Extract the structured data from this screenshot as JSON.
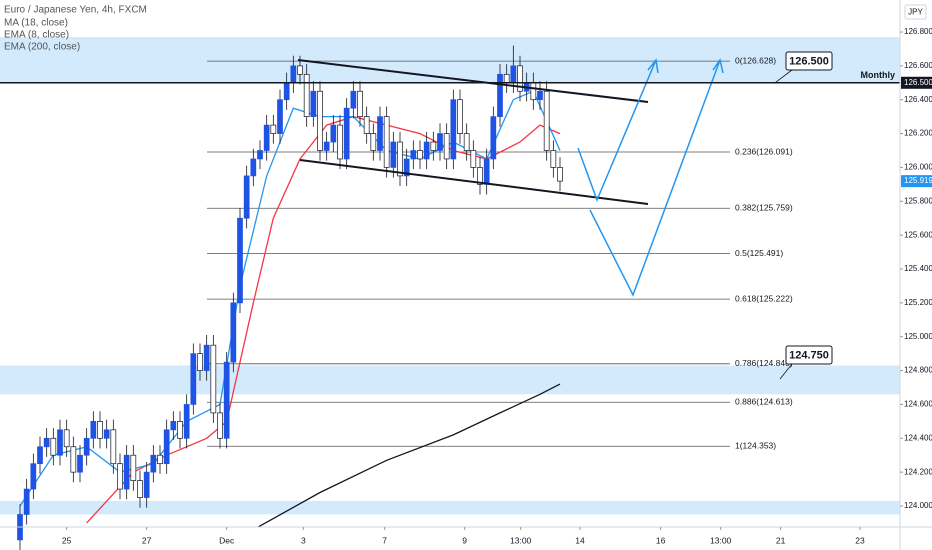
{
  "chart_data": {
    "type": "candlestick",
    "title": "Euro / Japanese Yen, 4h, FXCM",
    "currency": "JPY",
    "x": [
      0,
      1,
      2,
      3,
      4,
      5,
      6,
      7,
      8,
      9,
      10,
      11,
      12,
      13,
      14,
      15,
      16,
      17,
      18,
      19,
      20,
      21,
      22,
      23,
      24,
      25,
      26,
      27,
      28,
      29,
      30,
      31,
      32,
      33,
      34,
      35,
      36,
      37,
      38,
      39,
      40,
      41,
      42,
      43,
      44,
      45,
      46,
      47,
      48,
      49,
      50,
      51,
      52,
      53,
      54,
      55,
      56,
      57,
      58,
      59,
      60,
      61,
      62,
      63,
      64,
      65,
      66,
      67,
      68,
      69,
      70,
      71,
      72,
      73,
      74,
      75,
      76,
      77,
      78,
      79,
      80,
      81
    ],
    "open": [
      123.8,
      123.95,
      124.1,
      124.25,
      124.35,
      124.4,
      124.3,
      124.45,
      124.35,
      124.2,
      124.3,
      124.4,
      124.5,
      124.4,
      124.45,
      124.25,
      124.1,
      124.3,
      124.15,
      124.05,
      124.2,
      124.3,
      124.25,
      124.45,
      124.5,
      124.4,
      124.6,
      124.9,
      124.8,
      124.95,
      124.55,
      124.4,
      124.85,
      125.2,
      125.7,
      125.95,
      126.05,
      126.1,
      126.25,
      126.2,
      126.4,
      126.5,
      126.6,
      126.55,
      126.3,
      126.45,
      126.1,
      126.15,
      126.25,
      126.05,
      126.35,
      126.45,
      126.3,
      126.2,
      126.1,
      126.3,
      126.0,
      126.15,
      125.95,
      126.05,
      126.1,
      126.05,
      126.15,
      126.1,
      126.2,
      126.05,
      126.4,
      126.2,
      126.1,
      126.0,
      125.9,
      126.05,
      126.3,
      126.55,
      126.5,
      126.6,
      126.45,
      126.5,
      126.4,
      126.45,
      126.1,
      126.0
    ],
    "high": [
      124.01,
      124.16,
      124.31,
      124.41,
      124.46,
      124.46,
      124.51,
      124.51,
      124.41,
      124.36,
      124.46,
      124.56,
      124.56,
      124.51,
      124.51,
      124.31,
      124.36,
      124.36,
      124.21,
      124.26,
      124.36,
      124.36,
      124.51,
      124.56,
      124.56,
      124.66,
      124.96,
      124.96,
      125.01,
      125.01,
      124.61,
      124.91,
      125.26,
      125.76,
      126.01,
      126.11,
      126.16,
      126.31,
      126.31,
      126.46,
      126.56,
      126.66,
      126.66,
      126.61,
      126.51,
      126.51,
      126.21,
      126.31,
      126.31,
      126.41,
      126.51,
      126.51,
      126.36,
      126.26,
      126.36,
      126.36,
      126.21,
      126.21,
      126.11,
      126.16,
      126.16,
      126.21,
      126.21,
      126.26,
      126.26,
      126.46,
      126.46,
      126.26,
      126.16,
      126.06,
      126.11,
      126.36,
      126.61,
      126.61,
      126.72,
      126.66,
      126.56,
      126.56,
      126.51,
      126.51,
      126.16,
      126.06
    ],
    "low": [
      123.74,
      123.89,
      124.04,
      124.19,
      124.29,
      124.24,
      124.24,
      124.29,
      124.14,
      124.14,
      124.24,
      124.34,
      124.34,
      124.34,
      124.19,
      124.04,
      124.04,
      124.09,
      123.99,
      123.99,
      124.14,
      124.19,
      124.19,
      124.39,
      124.34,
      124.34,
      124.54,
      124.74,
      124.74,
      124.49,
      124.34,
      124.34,
      124.79,
      125.14,
      125.64,
      125.89,
      125.99,
      126.04,
      126.14,
      126.14,
      126.34,
      126.44,
      126.49,
      126.24,
      126.24,
      126.04,
      126.04,
      126.09,
      125.99,
      125.99,
      126.29,
      126.24,
      126.14,
      126.04,
      126.04,
      125.94,
      125.94,
      125.89,
      125.89,
      125.99,
      125.99,
      125.99,
      126.04,
      126.04,
      125.99,
      125.99,
      126.14,
      126.04,
      125.94,
      125.84,
      125.84,
      125.99,
      126.24,
      126.44,
      126.44,
      126.39,
      126.39,
      126.34,
      126.34,
      126.04,
      125.94,
      125.86
    ],
    "close": [
      123.95,
      124.1,
      124.25,
      124.35,
      124.4,
      124.3,
      124.45,
      124.35,
      124.2,
      124.3,
      124.4,
      124.5,
      124.4,
      124.45,
      124.25,
      124.1,
      124.3,
      124.15,
      124.05,
      124.2,
      124.3,
      124.25,
      124.45,
      124.5,
      124.4,
      124.6,
      124.9,
      124.8,
      124.95,
      124.55,
      124.4,
      124.85,
      125.2,
      125.7,
      125.95,
      126.05,
      126.1,
      126.25,
      126.2,
      126.4,
      126.5,
      126.6,
      126.55,
      126.3,
      126.45,
      126.1,
      126.15,
      126.25,
      126.05,
      126.35,
      126.45,
      126.3,
      126.2,
      126.1,
      126.3,
      126.0,
      126.15,
      125.95,
      126.05,
      126.1,
      126.05,
      126.15,
      126.1,
      126.2,
      126.05,
      126.4,
      126.2,
      126.1,
      126.0,
      125.9,
      126.05,
      126.3,
      126.55,
      126.5,
      126.6,
      126.45,
      126.5,
      126.4,
      126.45,
      126.1,
      126.0,
      125.919
    ],
    "up_color": "#1e53e5",
    "down_color": "#ffffff",
    "series": [
      {
        "name": "MA (18, close)",
        "color": "#f23645",
        "x": [
          10,
          17,
          22,
          28,
          31,
          35,
          38,
          42,
          46,
          50,
          55,
          60,
          65,
          70,
          75,
          78,
          81
        ],
        "values": [
          123.9,
          124.2,
          124.3,
          124.4,
          124.5,
          125.2,
          125.7,
          126.05,
          126.25,
          126.3,
          126.25,
          126.2,
          126.1,
          126.05,
          126.15,
          126.25,
          126.2
        ]
      },
      {
        "name": "EMA (8, close)",
        "color": "#2196f3",
        "x": [
          0,
          5,
          10,
          15,
          20,
          25,
          30,
          33,
          37,
          41,
          45,
          50,
          55,
          60,
          65,
          70,
          74,
          77,
          81
        ],
        "values": [
          124.0,
          124.3,
          124.35,
          124.2,
          124.25,
          124.5,
          124.6,
          125.3,
          125.95,
          126.35,
          126.3,
          126.3,
          126.1,
          126.05,
          126.15,
          126.05,
          126.4,
          126.45,
          126.1
        ]
      },
      {
        "name": "EMA (200, close)",
        "color": "#131722",
        "x": [
          35,
          45,
          55,
          65,
          72,
          78,
          81
        ],
        "values": [
          123.86,
          124.08,
          124.27,
          124.42,
          124.55,
          124.66,
          124.72
        ]
      }
    ],
    "levels": [
      {
        "value": 126.628,
        "label": "0(126.628)"
      },
      {
        "value": 126.091,
        "label": "0.236(126.091)"
      },
      {
        "value": 125.759,
        "label": "0.382(125.759)"
      },
      {
        "value": 125.491,
        "label": "0.5(125.491)"
      },
      {
        "value": 125.222,
        "label": "0.618(125.222)"
      },
      {
        "value": 124.84,
        "label": "0.786(124.840)"
      },
      {
        "value": 124.613,
        "label": "0.886(124.613)"
      },
      {
        "value": 124.353,
        "label": "1(124.353)"
      }
    ],
    "zones": [
      [
        126.5,
        126.77
      ],
      [
        124.66,
        124.83
      ],
      [
        123.95,
        124.03
      ]
    ],
    "monthly_line": {
      "value": 126.5,
      "label": "Monthly"
    },
    "callouts": [
      {
        "value": 126.5,
        "label": "126.500"
      },
      {
        "value": 124.75,
        "label": "124.750"
      }
    ],
    "price_tags": [
      {
        "value": 126.5,
        "label": "126.500",
        "color": "#131722"
      },
      {
        "value": 125.919,
        "label": "125.919",
        "color": "#2196f3"
      }
    ],
    "xlim": [
      -3,
      132
    ],
    "ylim": [
      123.876,
      126.989
    ],
    "xticks": [
      {
        "value": 7,
        "label": "25"
      },
      {
        "value": 19,
        "label": "27"
      },
      {
        "value": 31,
        "label": "Dec"
      },
      {
        "value": 42.5,
        "label": "3"
      },
      {
        "value": 54.7,
        "label": "7"
      },
      {
        "value": 66.7,
        "label": "9"
      },
      {
        "value": 75.1,
        "label": "13:00"
      },
      {
        "value": 84,
        "label": "14"
      },
      {
        "value": 96.1,
        "label": "16"
      },
      {
        "value": 105.1,
        "label": "13:00"
      },
      {
        "value": 114.1,
        "label": "21"
      },
      {
        "value": 126,
        "label": "23"
      }
    ],
    "yticks": [
      {
        "value": 126.8,
        "label": "126.800"
      },
      {
        "value": 126.6,
        "label": "126.600"
      },
      {
        "value": 126.4,
        "label": "126.400"
      },
      {
        "value": 126.2,
        "label": "126.200"
      },
      {
        "value": 126.0,
        "label": "126.000"
      },
      {
        "value": 125.8,
        "label": "125.800"
      },
      {
        "value": 125.6,
        "label": "125.600"
      },
      {
        "value": 125.4,
        "label": "125.400"
      },
      {
        "value": 125.2,
        "label": "125.200"
      },
      {
        "value": 125.0,
        "label": "125.000"
      },
      {
        "value": 124.8,
        "label": "124.800"
      },
      {
        "value": 124.6,
        "label": "124.600"
      },
      {
        "value": 124.4,
        "label": "124.400"
      },
      {
        "value": 124.2,
        "label": "124.200"
      },
      {
        "value": 124.0,
        "label": "124.000"
      }
    ]
  }
}
